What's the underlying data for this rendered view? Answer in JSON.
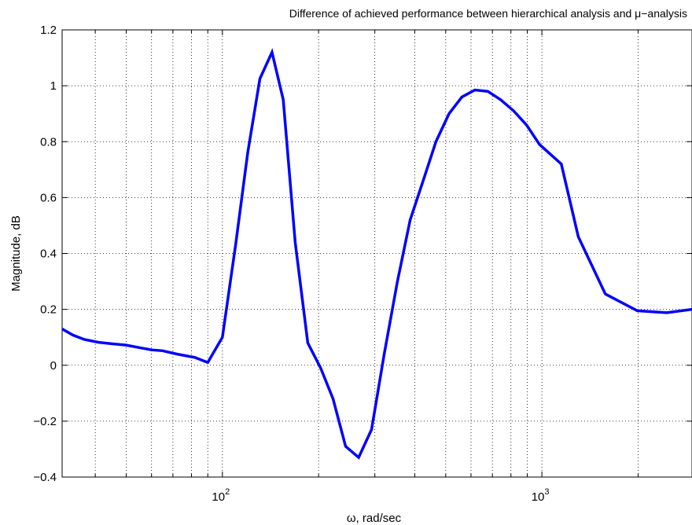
{
  "chart_data": {
    "type": "line",
    "title": "Difference of achieved performance between hierarchical analysis and μ−analysis",
    "xlabel": "ω, rad/sec",
    "ylabel": "Magnitude, dB",
    "xscale": "log",
    "xlim": [
      31.5,
      2950
    ],
    "ylim": [
      -0.4,
      1.2
    ],
    "grid": true,
    "line_color": "#0000ff",
    "x_tick_labels": [
      {
        "base": "10",
        "exp": "2",
        "value": 100
      },
      {
        "base": "10",
        "exp": "3",
        "value": 1000
      }
    ],
    "y_tick_labels": [
      "−0.4",
      "−0.2",
      "0",
      "0.2",
      "0.4",
      "0.6",
      "0.8",
      "1",
      "1.2"
    ],
    "series": [
      {
        "x": [
          31.5,
          34,
          37,
          41,
          45,
          50,
          55,
          60,
          65,
          72,
          82,
          90,
          100,
          110,
          120,
          131,
          143,
          155,
          169,
          185,
          203,
          222,
          243,
          267,
          293,
          321,
          353,
          387,
          425,
          466,
          512,
          562,
          617,
          677,
          743,
          816,
          895,
          983,
          1150,
          1300,
          1580,
          1990,
          2460,
          2950
        ],
        "y": [
          0.13,
          0.108,
          0.092,
          0.082,
          0.077,
          0.072,
          0.063,
          0.055,
          0.052,
          0.04,
          0.028,
          0.01,
          0.1,
          0.43,
          0.76,
          1.025,
          1.12,
          0.95,
          0.44,
          0.08,
          -0.01,
          -0.12,
          -0.29,
          -0.33,
          -0.23,
          0.04,
          0.3,
          0.52,
          0.66,
          0.8,
          0.9,
          0.96,
          0.985,
          0.98,
          0.95,
          0.91,
          0.86,
          0.79,
          0.72,
          0.46,
          0.255,
          0.195,
          0.188,
          0.2
        ]
      }
    ]
  }
}
